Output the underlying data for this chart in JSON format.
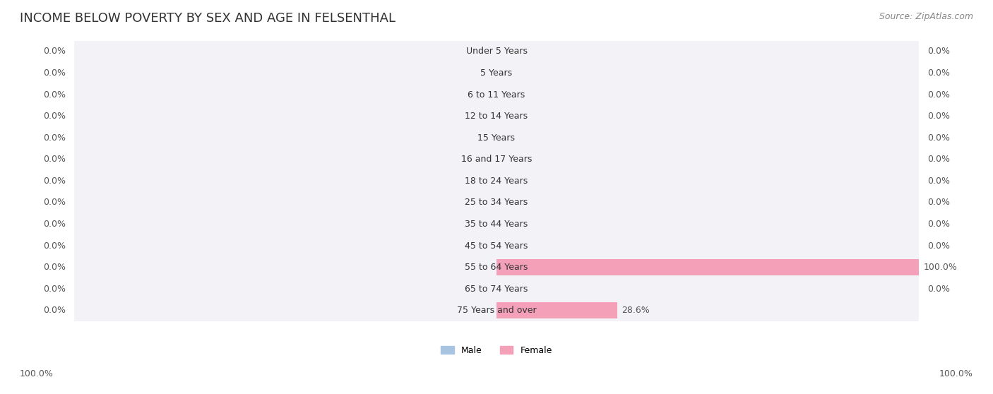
{
  "title": "INCOME BELOW POVERTY BY SEX AND AGE IN FELSENTHAL",
  "source": "Source: ZipAtlas.com",
  "categories": [
    "Under 5 Years",
    "5 Years",
    "6 to 11 Years",
    "12 to 14 Years",
    "15 Years",
    "16 and 17 Years",
    "18 to 24 Years",
    "25 to 34 Years",
    "35 to 44 Years",
    "45 to 54 Years",
    "55 to 64 Years",
    "65 to 74 Years",
    "75 Years and over"
  ],
  "male_values": [
    0.0,
    0.0,
    0.0,
    0.0,
    0.0,
    0.0,
    0.0,
    0.0,
    0.0,
    0.0,
    0.0,
    0.0,
    0.0
  ],
  "female_values": [
    0.0,
    0.0,
    0.0,
    0.0,
    0.0,
    0.0,
    0.0,
    0.0,
    0.0,
    0.0,
    100.0,
    0.0,
    28.6
  ],
  "male_color": "#a8c4e0",
  "female_color": "#f4a0b8",
  "male_label": "Male",
  "female_label": "Female",
  "bg_row_color": "#f0f0f5",
  "bar_row_color": "#ffffff",
  "max_value": 100.0,
  "title_fontsize": 13,
  "source_fontsize": 9,
  "label_fontsize": 9,
  "axis_label_fontsize": 9
}
